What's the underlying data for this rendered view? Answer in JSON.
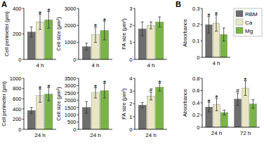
{
  "chart_data": [
    {
      "type": "bar",
      "panel_label": "A",
      "y_label": "Cell perimeter (μm)",
      "categories": [
        "4 h"
      ],
      "ylim": [
        0,
        400
      ],
      "yticks": [
        0,
        200,
        400
      ],
      "grid": false,
      "series": [
        {
          "name": "RBM",
          "color": "#6d6d6d",
          "values": [
            215
          ],
          "errors": [
            40
          ],
          "annotations": [
            null
          ]
        },
        {
          "name": "Ca",
          "color": "#e9e6c6",
          "values": [
            295
          ],
          "errors": [
            60
          ],
          "annotations": [
            "*"
          ]
        },
        {
          "name": "Mg",
          "color": "#79b446",
          "values": [
            310
          ],
          "errors": [
            65
          ],
          "annotations": [
            "*"
          ]
        }
      ]
    },
    {
      "type": "bar",
      "y_label": "Cell size (μm²)",
      "categories": [
        "4 h"
      ],
      "ylim": [
        0,
        3000
      ],
      "yticks": [
        0,
        1000,
        2000,
        3000
      ],
      "grid": false,
      "series": [
        {
          "name": "RBM",
          "color": "#6d6d6d",
          "values": [
            750
          ],
          "errors": [
            200
          ],
          "annotations": [
            null
          ]
        },
        {
          "name": "Ca",
          "color": "#e9e6c6",
          "values": [
            1450
          ],
          "errors": [
            450
          ],
          "annotations": [
            "*"
          ]
        },
        {
          "name": "Mg",
          "color": "#79b446",
          "values": [
            1700
          ],
          "errors": [
            550
          ],
          "annotations": [
            "*"
          ]
        }
      ]
    },
    {
      "type": "bar",
      "y_label": "FA size (μm²)",
      "categories": [
        "4 h"
      ],
      "ylim": [
        0,
        3
      ],
      "yticks": [
        0,
        1,
        2,
        3
      ],
      "grid": false,
      "series": [
        {
          "name": "RBM",
          "color": "#6d6d6d",
          "values": [
            1.8
          ],
          "errors": [
            0.4
          ],
          "annotations": [
            null
          ]
        },
        {
          "name": "Ca",
          "color": "#e9e6c6",
          "values": [
            2.0
          ],
          "errors": [
            0.2
          ],
          "annotations": [
            null
          ]
        },
        {
          "name": "Mg",
          "color": "#79b446",
          "values": [
            2.2
          ],
          "errors": [
            0.3
          ],
          "annotations": [
            null
          ]
        }
      ]
    },
    {
      "type": "bar",
      "y_label": "Cell perimeter (μm)",
      "categories": [
        "24 h"
      ],
      "ylim": [
        0,
        1000
      ],
      "yticks": [
        0,
        200,
        400,
        600,
        800,
        1000
      ],
      "grid": false,
      "series": [
        {
          "name": "RBM",
          "color": "#6d6d6d",
          "values": [
            370
          ],
          "errors": [
            60
          ],
          "annotations": [
            null
          ]
        },
        {
          "name": "Ca",
          "color": "#e9e6c6",
          "values": [
            660
          ],
          "errors": [
            130
          ],
          "annotations": [
            "*"
          ]
        },
        {
          "name": "Mg",
          "color": "#79b446",
          "values": [
            690
          ],
          "errors": [
            130
          ],
          "annotations": [
            "*"
          ]
        }
      ]
    },
    {
      "type": "bar",
      "y_label": "Cell size (μm²)",
      "categories": [
        "24 h"
      ],
      "ylim": [
        0,
        3500
      ],
      "yticks": [
        0,
        500,
        1000,
        1500,
        2000,
        2500,
        3000,
        3500
      ],
      "grid": false,
      "series": [
        {
          "name": "RBM",
          "color": "#6d6d6d",
          "values": [
            1500
          ],
          "errors": [
            400
          ],
          "annotations": [
            null
          ]
        },
        {
          "name": "Ca",
          "color": "#e9e6c6",
          "values": [
            2500
          ],
          "errors": [
            350
          ],
          "annotations": [
            "*"
          ]
        },
        {
          "name": "Mg",
          "color": "#79b446",
          "values": [
            2650
          ],
          "errors": [
            500
          ],
          "annotations": [
            "*"
          ]
        }
      ]
    },
    {
      "type": "bar",
      "y_label": "FA size (μm²)",
      "categories": [
        "24 h"
      ],
      "ylim": [
        0,
        4
      ],
      "yticks": [
        0,
        1,
        2,
        3,
        4
      ],
      "grid": false,
      "series": [
        {
          "name": "RBM",
          "color": "#6d6d6d",
          "values": [
            1.9
          ],
          "errors": [
            0.2
          ],
          "annotations": [
            null
          ]
        },
        {
          "name": "Ca",
          "color": "#e9e6c6",
          "values": [
            2.6
          ],
          "errors": [
            0.3
          ],
          "annotations": [
            "#"
          ]
        },
        {
          "name": "Mg",
          "color": "#79b446",
          "values": [
            3.3
          ],
          "errors": [
            0.3
          ],
          "annotations": [
            "*"
          ]
        }
      ]
    },
    {
      "type": "bar",
      "panel_label": "B",
      "y_label": "Absorbance",
      "categories": [
        "4 h"
      ],
      "ylim": [
        0,
        0.3
      ],
      "yticks": [
        0,
        0.1,
        0.2,
        0.3
      ],
      "grid": false,
      "legend": "upper right",
      "series": [
        {
          "name": "RBM",
          "color": "#6d6d6d",
          "values": [
            0.2
          ],
          "errors": [
            0.05
          ],
          "annotations": [
            "*"
          ]
        },
        {
          "name": "Ca",
          "color": "#e9e6c6",
          "values": [
            0.21
          ],
          "errors": [
            0.05
          ],
          "annotations": [
            "*"
          ]
        },
        {
          "name": "Mg",
          "color": "#79b446",
          "values": [
            0.14
          ],
          "errors": [
            0.04
          ],
          "annotations": [
            null
          ]
        }
      ]
    },
    {
      "type": "bar",
      "y_label": "Absorbance",
      "categories": [
        "24 h",
        "72 h"
      ],
      "ylim": [
        0,
        0.8
      ],
      "yticks": [
        0,
        0.2,
        0.4,
        0.6,
        0.8
      ],
      "grid": false,
      "series": [
        {
          "name": "RBM",
          "color": "#6d6d6d",
          "values": [
            0.33,
            0.46
          ],
          "errors": [
            0.08,
            0.1
          ],
          "annotations": [
            "*",
            "#"
          ]
        },
        {
          "name": "Ca",
          "color": "#e9e6c6",
          "values": [
            0.37,
            0.64
          ],
          "errors": [
            0.1,
            0.12
          ],
          "annotations": [
            "*",
            "*"
          ]
        },
        {
          "name": "Mg",
          "color": "#79b446",
          "values": [
            0.24,
            0.38
          ],
          "errors": [
            0.04,
            0.07
          ],
          "annotations": [
            null,
            null
          ]
        }
      ]
    }
  ]
}
